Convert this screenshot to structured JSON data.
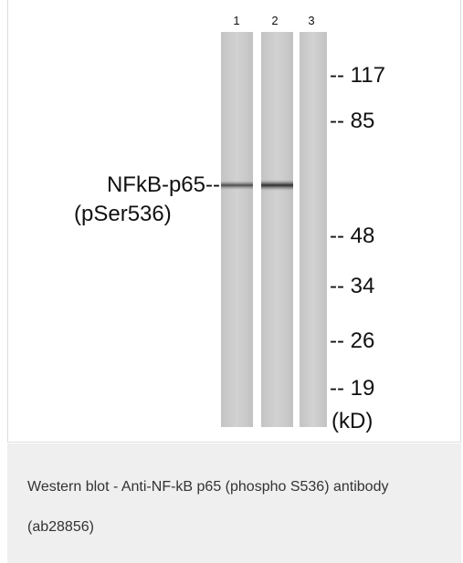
{
  "figure": {
    "lanes": [
      "1",
      "2",
      "3"
    ],
    "markers": [
      "-- 117",
      "-- 85",
      "-- 48",
      "-- 34",
      "-- 26",
      "-- 19"
    ],
    "unit": "(kD)",
    "band_label": [
      "NFkB-p65--",
      "(pSer536)"
    ]
  },
  "caption": "Western blot - Anti-NF-kB p65 (phospho S536) antibody (ab28856)"
}
